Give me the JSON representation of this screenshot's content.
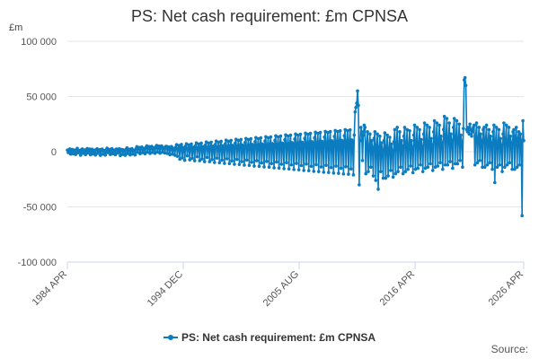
{
  "chart_data": {
    "type": "line",
    "title": "PS: Net cash requirement: £m CPNSA",
    "ylabel": "£m",
    "xlabel": "",
    "ylim": [
      -100000,
      100000
    ],
    "yticks": [
      -100000,
      -50000,
      0,
      50000,
      100000
    ],
    "ytick_labels": [
      "-100 000",
      "-50 000",
      "0",
      "50 000",
      "100 000"
    ],
    "xtick_labels": [
      "1984 APR",
      "1994 DEC",
      "2005 AUG",
      "2016 APR",
      "2026 APR"
    ],
    "xtick_months": [
      0,
      128,
      256,
      384,
      504
    ],
    "series_color": "#0b7cbf",
    "grid": true,
    "legend_position": "bottom",
    "series": [
      {
        "name": "PS: Net cash requirement: £m CPNSA",
        "x_start": "1984 APR",
        "x_end": "2026 APR",
        "frequency": "monthly",
        "values": [
          1500,
          -800,
          1200,
          2500,
          -2200,
          900,
          2000,
          -1800,
          1500,
          600,
          -2500,
          1800,
          3000,
          -1000,
          500,
          1200,
          -3200,
          1800,
          2500,
          -1500,
          900,
          1600,
          -2600,
          1400,
          2800,
          -1200,
          1100,
          2400,
          -2800,
          700,
          2200,
          -2000,
          1300,
          500,
          -3000,
          2100,
          2600,
          -1500,
          800,
          1900,
          -3400,
          1600,
          2400,
          -2200,
          1200,
          900,
          -3100,
          1700,
          3200,
          -900,
          1400,
          2100,
          -2500,
          600,
          2700,
          -1800,
          1100,
          1300,
          -2700,
          2300,
          2400,
          -1300,
          900,
          2600,
          -3600,
          1200,
          2000,
          -2400,
          1600,
          700,
          -3300,
          1900,
          3500,
          -1600,
          1200,
          2200,
          -2900,
          1000,
          2800,
          -2100,
          1400,
          1100,
          -2900,
          2600,
          4500,
          -600,
          2400,
          3800,
          -1800,
          2600,
          4200,
          -900,
          3000,
          2300,
          -1800,
          3800,
          5200,
          -400,
          2800,
          4600,
          -1600,
          3100,
          4800,
          -700,
          3500,
          2700,
          -1500,
          4400,
          5600,
          -300,
          3000,
          5000,
          -1400,
          3400,
          5200,
          -500,
          3700,
          2900,
          -1300,
          4700,
          4800,
          -1600,
          2400,
          4200,
          -2800,
          2600,
          4600,
          -2200,
          3000,
          2100,
          -3200,
          4000,
          6400,
          -4200,
          2600,
          5600,
          -6800,
          3200,
          6600,
          -5600,
          3800,
          2400,
          -7800,
          5000,
          7200,
          -3800,
          3000,
          6200,
          -7400,
          3600,
          7000,
          -6000,
          4100,
          2800,
          -8200,
          5400,
          8000,
          -4600,
          3400,
          7000,
          -8200,
          4000,
          7800,
          -6600,
          4600,
          3200,
          -9000,
          6000,
          8800,
          -5200,
          3800,
          7800,
          -9000,
          4400,
          8600,
          -7200,
          5000,
          3600,
          -9800,
          6600,
          9600,
          -5800,
          4200,
          8600,
          -10000,
          4800,
          9400,
          -7800,
          5400,
          4000,
          -10600,
          7200,
          10400,
          -6400,
          4600,
          9400,
          -10800,
          5200,
          10200,
          -8400,
          5800,
          4400,
          -11400,
          7800,
          11200,
          -7000,
          5000,
          10200,
          -11600,
          5600,
          11000,
          -9000,
          6200,
          4800,
          -12200,
          8400,
          12000,
          -7600,
          5400,
          11000,
          -12400,
          6000,
          11800,
          -9600,
          6600,
          5200,
          -13000,
          9000,
          12800,
          -8200,
          5800,
          11800,
          -13200,
          6400,
          12600,
          -10200,
          7000,
          5600,
          -13800,
          9600,
          13600,
          -8800,
          6200,
          12600,
          -14000,
          6800,
          13400,
          -10800,
          7400,
          6000,
          -14600,
          10200,
          14400,
          -9400,
          6600,
          13400,
          -14800,
          7200,
          14200,
          -11400,
          7800,
          6400,
          -15400,
          10800,
          15200,
          -10000,
          7000,
          14200,
          -15600,
          7600,
          15000,
          -12000,
          8200,
          6800,
          -16200,
          11400,
          16000,
          -10600,
          7400,
          15000,
          -16400,
          8000,
          15800,
          -12600,
          8600,
          7200,
          -17000,
          12000,
          16800,
          -11200,
          7800,
          15800,
          -17200,
          8400,
          16600,
          -13200,
          9000,
          7600,
          -17800,
          12600,
          17600,
          -11800,
          8200,
          16600,
          -18000,
          8800,
          17400,
          -13800,
          9400,
          8000,
          -18600,
          13200,
          18400,
          -12400,
          8600,
          17400,
          -18800,
          9200,
          18200,
          -14400,
          9800,
          8400,
          -19400,
          13800,
          19200,
          -13000,
          9000,
          18200,
          -19600,
          9600,
          19000,
          -15000,
          10200,
          8800,
          -20200,
          14400,
          20000,
          -13600,
          9400,
          19000,
          -20400,
          10000,
          19800,
          -15600,
          10600,
          9200,
          -21000,
          15000,
          36000,
          40000,
          44000,
          55000,
          42000,
          -30000,
          10000,
          22000,
          18000,
          -8000,
          15000,
          24000,
          22000,
          -20000,
          8000,
          18000,
          -18000,
          6000,
          16000,
          -14000,
          10000,
          4000,
          -22000,
          12000,
          18000,
          -26000,
          6000,
          16000,
          -34000,
          4000,
          14000,
          -18000,
          8000,
          2000,
          -24000,
          10000,
          17000,
          -24000,
          5000,
          15000,
          -22000,
          3000,
          13000,
          -17000,
          7000,
          1000,
          -23000,
          9000,
          20000,
          -20000,
          8000,
          22000,
          -18000,
          6000,
          18000,
          -14000,
          10000,
          5000,
          -20000,
          14000,
          22000,
          -18000,
          8000,
          20000,
          -16000,
          6000,
          19000,
          -13000,
          10000,
          4000,
          -19000,
          15000,
          24000,
          -16000,
          9000,
          22000,
          -15000,
          7000,
          20000,
          -12000,
          11000,
          5000,
          -18000,
          16000,
          26000,
          -15000,
          10000,
          24000,
          -14000,
          8000,
          22000,
          -11000,
          12000,
          6000,
          -17000,
          18000,
          28000,
          -14000,
          12000,
          26000,
          -13000,
          10000,
          24000,
          -10000,
          14000,
          8000,
          -16000,
          20000,
          32000,
          -12000,
          14000,
          30000,
          -12000,
          12000,
          26000,
          -9000,
          16000,
          10000,
          -15000,
          22000,
          30000,
          -11000,
          13000,
          28000,
          -11000,
          11000,
          25000,
          -8000,
          15000,
          9000,
          -14000,
          21000,
          65000,
          67000,
          60000,
          20000,
          18000,
          22000,
          16000,
          25000,
          20000,
          14000,
          18000,
          22000,
          24000,
          -12000,
          14000,
          26000,
          -10000,
          12000,
          22000,
          -8000,
          16000,
          10000,
          -14000,
          20000,
          22000,
          -14000,
          12000,
          24000,
          -12000,
          10000,
          20000,
          -10000,
          14000,
          8000,
          -16000,
          18000,
          24000,
          -28000,
          10000,
          22000,
          -14000,
          8000,
          20000,
          -12000,
          12000,
          6000,
          -18000,
          16000,
          26000,
          -14000,
          12000,
          24000,
          -12000,
          10000,
          22000,
          -10000,
          14000,
          8000,
          -16000,
          18000,
          20000,
          -16000,
          14000,
          22000,
          -14000,
          12000,
          18000,
          -12000,
          16000,
          10000,
          -58000,
          28000,
          10000
        ]
      }
    ]
  },
  "legend": {
    "label": "PS: Net cash requirement: £m CPNSA"
  },
  "source_label": "Source:"
}
